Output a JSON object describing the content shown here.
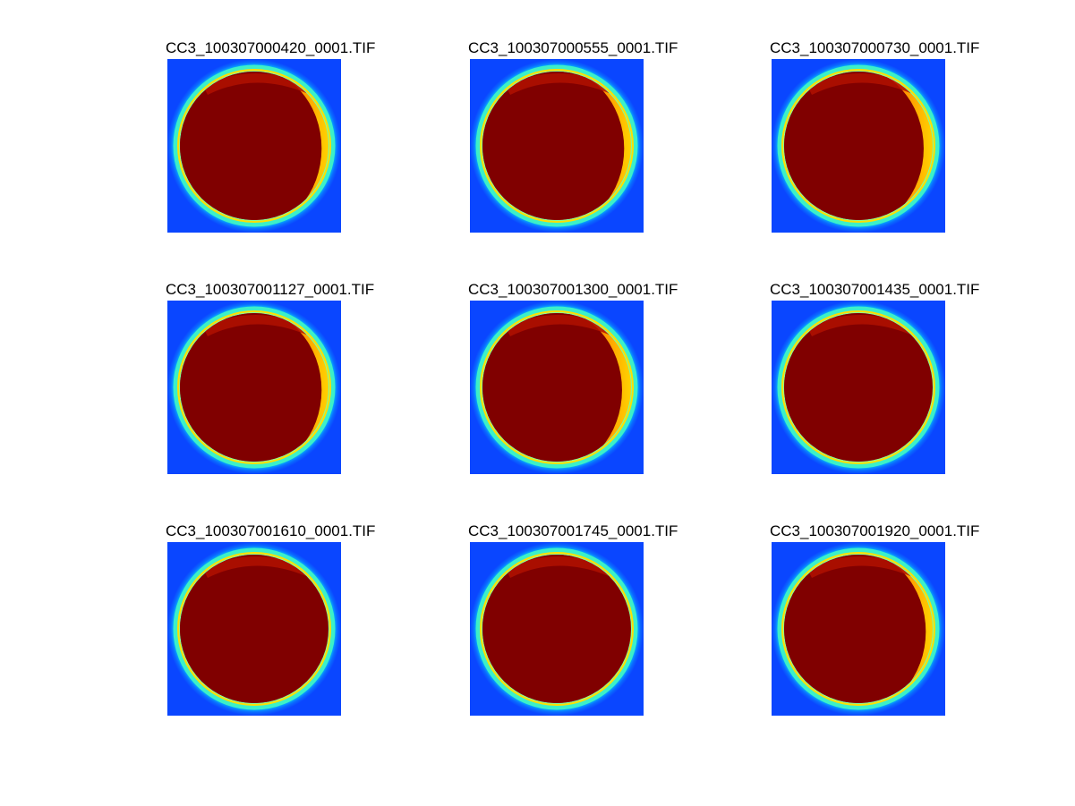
{
  "figure": {
    "background": "#ffffff",
    "colormap": "jet",
    "panels": [
      {
        "title": "CC3_100307000420_0001.TIF",
        "shadow": 0.62
      },
      {
        "title": "CC3_100307000555_0001.TIF",
        "shadow": 0.62
      },
      {
        "title": "CC3_100307000730_0001.TIF",
        "shadow": 0.6
      },
      {
        "title": "CC3_100307001127_0001.TIF",
        "shadow": 0.62
      },
      {
        "title": "CC3_100307001300_0001.TIF",
        "shadow": 0.6
      },
      {
        "title": "CC3_100307001435_0001.TIF",
        "shadow": 0.8
      },
      {
        "title": "CC3_100307001610_0001.TIF",
        "shadow": 0.95
      },
      {
        "title": "CC3_100307001745_0001.TIF",
        "shadow": 0.9
      },
      {
        "title": "CC3_100307001920_0001.TIF",
        "shadow": 0.62
      }
    ]
  }
}
